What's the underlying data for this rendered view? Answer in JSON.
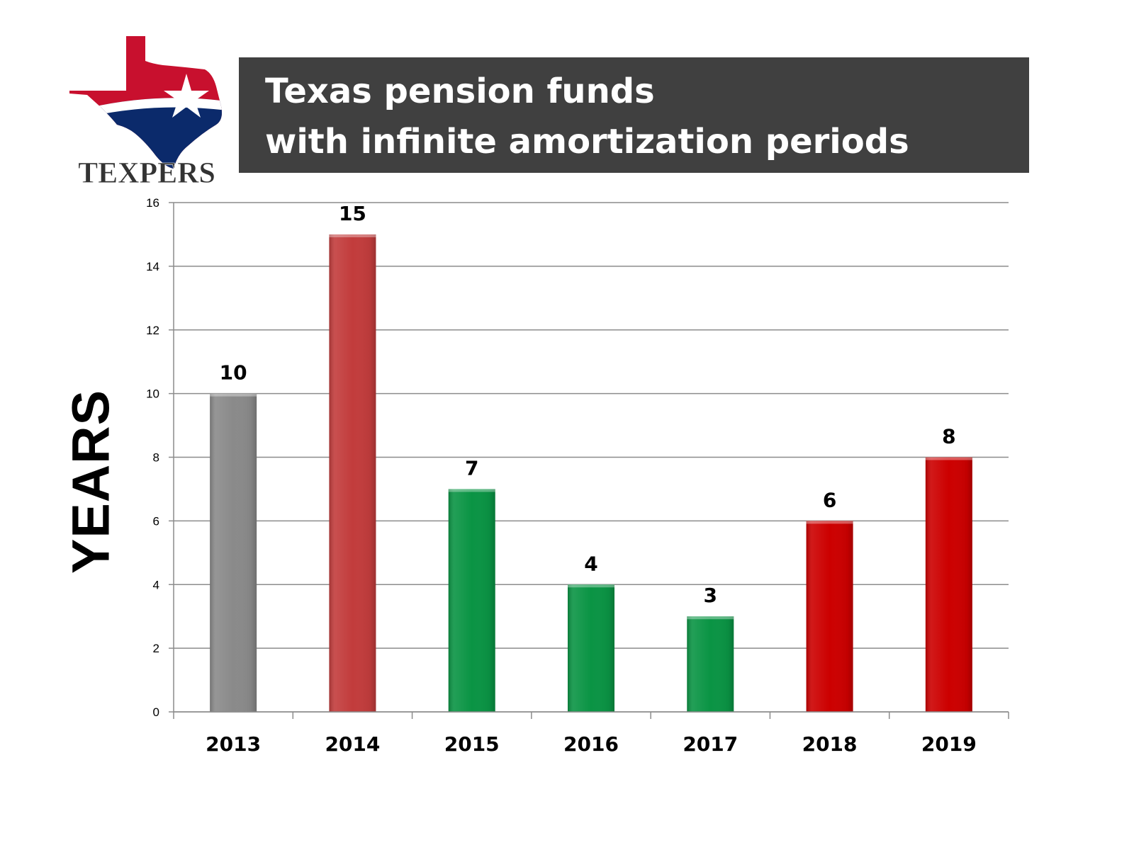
{
  "logo": {
    "text": "TEXPERS"
  },
  "colors": {
    "title_bg": "#404040",
    "grid": "#8c8c8c",
    "gray": "#8a8a8a",
    "red_dark": "#b83a3a",
    "green": "#0a9444",
    "red": "#cc0000"
  },
  "chart_data": {
    "type": "bar",
    "title": [
      "Texas pension funds",
      "with infinite amortization periods"
    ],
    "ylabel": "YEARS",
    "xlabel": "",
    "ylim": [
      0,
      16
    ],
    "yticks": [
      0,
      2,
      4,
      6,
      8,
      10,
      12,
      14,
      16
    ],
    "grid": true,
    "categories": [
      "2013",
      "2014",
      "2015",
      "2016",
      "2017",
      "2018",
      "2019"
    ],
    "values": [
      10,
      15,
      7,
      4,
      3,
      6,
      8
    ],
    "bar_colors": [
      "#8a8a8a",
      "#c23c3c",
      "#0a9444",
      "#0a9444",
      "#0a9444",
      "#cc0000",
      "#cc0000"
    ],
    "data_labels": [
      "10",
      "15",
      "7",
      "4",
      "3",
      "6",
      "8"
    ]
  }
}
